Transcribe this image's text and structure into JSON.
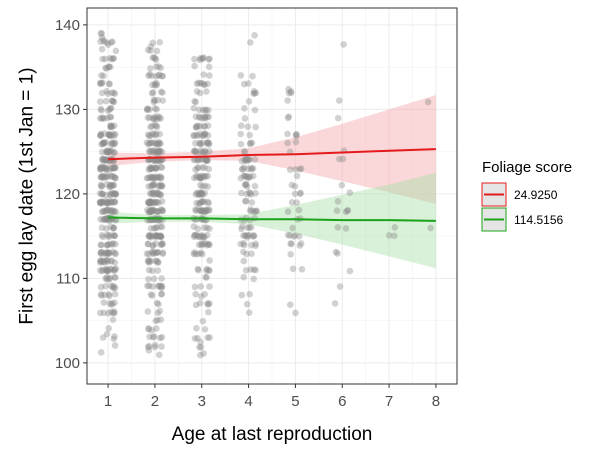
{
  "chart_data": {
    "type": "scatter",
    "title": "",
    "xlabel": "Age at last reproduction",
    "ylabel": "First egg lay date (1st Jan = 1)",
    "xlim": [
      0.55,
      8.45
    ],
    "ylim": [
      97.5,
      142
    ],
    "x_ticks": [
      1,
      2,
      3,
      4,
      5,
      6,
      7,
      8
    ],
    "y_ticks": [
      100,
      110,
      120,
      130,
      140
    ],
    "grid": true,
    "point_color": "#8c8c8c",
    "points_by_age": [
      {
        "x": 1,
        "y_min": 101,
        "y_max": 139,
        "center": 120,
        "count": 340,
        "outliers": [
          138.5,
          137.8,
          104,
          103.5,
          101.2
        ]
      },
      {
        "x": 2,
        "y_min": 101,
        "y_max": 138,
        "center": 120,
        "count": 320,
        "outliers": [
          137.5,
          136,
          103,
          101.5,
          101
        ]
      },
      {
        "x": 3,
        "y_min": 101,
        "y_max": 136,
        "center": 120,
        "count": 230,
        "outliers": [
          136,
          135,
          102.5,
          101
        ]
      },
      {
        "x": 4,
        "y_min": 106,
        "y_max": 139,
        "center": 121,
        "count": 110,
        "outliers": [
          138.8,
          106,
          108
        ]
      },
      {
        "x": 5,
        "y_min": 106,
        "y_max": 133,
        "center": 121,
        "count": 45,
        "outliers": [
          132.5,
          106
        ]
      },
      {
        "x": 6,
        "y_min": 107,
        "y_max": 138,
        "center": 121,
        "count": 20,
        "outliers": [
          137.8,
          107
        ]
      },
      {
        "x": 7,
        "y_min": 114,
        "y_max": 116,
        "center": 115,
        "count": 3,
        "outliers": []
      },
      {
        "x": 8,
        "y_min": 116,
        "y_max": 131,
        "center": 123,
        "count": 2,
        "outliers": [
          130.8,
          116
        ]
      }
    ],
    "series": [
      {
        "name": "24.9250",
        "color": "#e41a1c",
        "fill": "#f4a6a8",
        "x": [
          1,
          2,
          3,
          4,
          5,
          6,
          7,
          8
        ],
        "y": [
          124.1,
          124.3,
          124.4,
          124.6,
          124.7,
          124.9,
          125.1,
          125.3
        ],
        "ci_lower": [
          123.3,
          123.8,
          124.0,
          123.9,
          122.8,
          121.5,
          120.2,
          118.8
        ],
        "ci_upper": [
          124.9,
          124.8,
          125.0,
          125.4,
          126.7,
          128.3,
          130.0,
          131.7
        ]
      },
      {
        "name": "114.5156",
        "color": "#1aa31a",
        "fill": "#a8e0a8",
        "x": [
          1,
          2,
          3,
          4,
          5,
          6,
          7,
          8
        ],
        "y": [
          117.2,
          117.1,
          117.1,
          117.0,
          117.0,
          116.9,
          116.9,
          116.8
        ],
        "ci_lower": [
          116.5,
          116.7,
          116.7,
          116.4,
          115.3,
          114.0,
          112.6,
          111.2
        ],
        "ci_upper": [
          117.9,
          117.5,
          117.5,
          117.6,
          118.7,
          119.9,
          121.1,
          122.5
        ]
      }
    ],
    "legend": {
      "title": "Foliage score",
      "position": "right",
      "entries": [
        "24.9250",
        "114.5156"
      ]
    }
  }
}
